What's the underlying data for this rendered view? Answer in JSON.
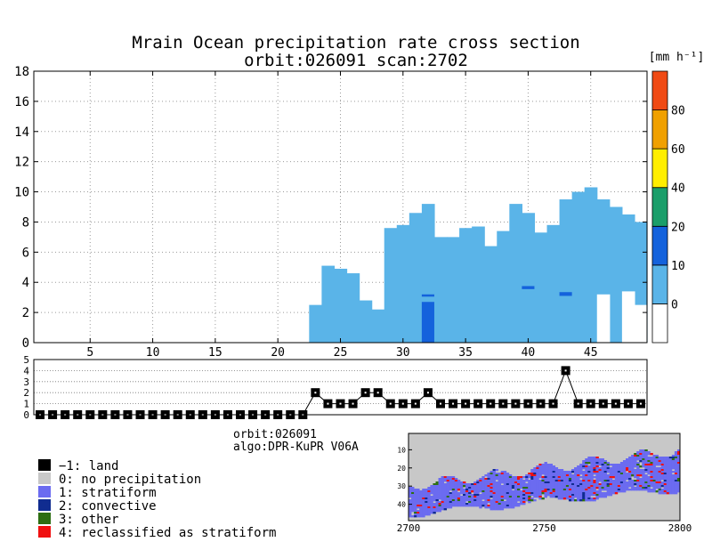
{
  "title": {
    "line1": "Mrain Ocean precipitation rate cross section",
    "line2": "orbit:026091    scan:2702"
  },
  "colorbar": {
    "unit_label": "[mm h⁻¹]",
    "ticks": [
      "0",
      "10",
      "20",
      "40",
      "60",
      "80"
    ],
    "colors": [
      "#ffffff",
      "#5ab4e8",
      "#1462dc",
      "#1b9e6a",
      "#ffee00",
      "#f0a000",
      "#f04a14"
    ]
  },
  "info": {
    "orbit": "orbit:026091",
    "algo": "algo:DPR-KuPR V06A"
  },
  "legend": [
    {
      "code": "−1:",
      "label": "land",
      "color": "#000000"
    },
    {
      "code": "0:",
      "label": "no precipitation",
      "color": "#c8c8c8"
    },
    {
      "code": "1:",
      "label": "stratiform",
      "color": "#6b6bf0"
    },
    {
      "code": "2:",
      "label": "convective",
      "color": "#102c90"
    },
    {
      "code": "3:",
      "label": "other",
      "color": "#2d6e12"
    },
    {
      "code": "4:",
      "label": "reclassified as stratiform",
      "color": "#f01010"
    }
  ],
  "chart_data": [
    {
      "type": "heatmap",
      "title": "Mrain Ocean precipitation rate cross section orbit:026091 scan:2702",
      "xlabel": "",
      "ylabel": "",
      "unit": "[mm h⁻¹]",
      "xlim": [
        1,
        49
      ],
      "ylim": [
        0,
        18
      ],
      "xticks": [
        5,
        10,
        15,
        20,
        25,
        30,
        35,
        40,
        45
      ],
      "yticks": [
        0,
        2,
        4,
        6,
        8,
        10,
        12,
        14,
        16,
        18
      ],
      "grid": true,
      "bin_ranges": [
        "0-10",
        "10-20",
        "20-40",
        "40-60",
        "60-80",
        "80+"
      ],
      "columns_0_10": [
        {
          "x": 23,
          "top": 2.5
        },
        {
          "x": 24,
          "top": 5.1
        },
        {
          "x": 25,
          "top": 4.9
        },
        {
          "x": 26,
          "top": 4.6
        },
        {
          "x": 27,
          "top": 2.8
        },
        {
          "x": 28,
          "top": 2.2
        },
        {
          "x": 29,
          "top": 7.6
        },
        {
          "x": 30,
          "top": 7.8
        },
        {
          "x": 31,
          "top": 8.6
        },
        {
          "x": 32,
          "top": 9.2
        },
        {
          "x": 33,
          "top": 7.0
        },
        {
          "x": 34,
          "top": 7.0
        },
        {
          "x": 35,
          "top": 7.6
        },
        {
          "x": 36,
          "top": 7.7
        },
        {
          "x": 37,
          "top": 6.4
        },
        {
          "x": 38,
          "top": 7.4
        },
        {
          "x": 39,
          "top": 9.2
        },
        {
          "x": 40,
          "top": 8.6
        },
        {
          "x": 41,
          "top": 7.3
        },
        {
          "x": 42,
          "top": 7.8
        },
        {
          "x": 43,
          "top": 9.5
        },
        {
          "x": 44,
          "top": 10.0
        },
        {
          "x": 45,
          "top": 10.3
        },
        {
          "x": 46,
          "top": 9.5
        },
        {
          "x": 47,
          "top": 9.0
        },
        {
          "x": 48,
          "top": 8.5
        },
        {
          "x": 49,
          "top": 8.0
        }
      ],
      "gaps_0": [
        {
          "x": 46,
          "from": 0,
          "to": 3.2
        },
        {
          "x": 48,
          "from": 0,
          "to": 3.4
        },
        {
          "x": 49,
          "from": 0,
          "to": 2.5
        }
      ],
      "cells_10_20": [
        {
          "x": 32,
          "from": 0,
          "to": 2.7
        },
        {
          "x": 32,
          "from": 3.05,
          "to": 3.2
        },
        {
          "x": 40,
          "from": 3.55,
          "to": 3.75
        },
        {
          "x": 43,
          "from": 3.1,
          "to": 3.35
        }
      ]
    },
    {
      "type": "line",
      "title": "",
      "xlabel": "",
      "ylabel": "",
      "xlim": [
        1,
        49
      ],
      "ylim": [
        0,
        5
      ],
      "yticks": [
        0,
        1,
        2,
        3,
        4,
        5
      ],
      "grid": true,
      "series": [
        {
          "x": [
            1,
            2,
            3,
            4,
            5,
            6,
            7,
            8,
            9,
            10,
            11,
            12,
            13,
            14,
            15,
            16,
            17,
            18,
            19,
            20,
            21,
            22,
            23,
            24,
            25,
            26,
            27,
            28,
            29,
            30,
            31,
            32,
            33,
            34,
            35,
            36,
            37,
            38,
            39,
            40,
            41,
            42,
            43,
            44,
            45,
            46,
            47,
            48,
            49
          ],
          "values": [
            0,
            0,
            0,
            0,
            0,
            0,
            0,
            0,
            0,
            0,
            0,
            0,
            0,
            0,
            0,
            0,
            0,
            0,
            0,
            0,
            0,
            0,
            2,
            1,
            1,
            1,
            2,
            2,
            1,
            1,
            1,
            2,
            1,
            1,
            1,
            1,
            1,
            1,
            1,
            1,
            1,
            1,
            4,
            1,
            1,
            1,
            1,
            1,
            1
          ]
        }
      ]
    },
    {
      "type": "heatmap",
      "title": "",
      "xlabel": "",
      "ylabel": "",
      "xlim": [
        2700,
        2800
      ],
      "ylim": [
        1,
        49
      ],
      "xticks": [
        2700,
        2750,
        2800
      ],
      "yticks": [
        10,
        20,
        30,
        40
      ],
      "category_codes": [
        -1,
        0,
        1,
        2,
        3,
        4
      ]
    }
  ]
}
